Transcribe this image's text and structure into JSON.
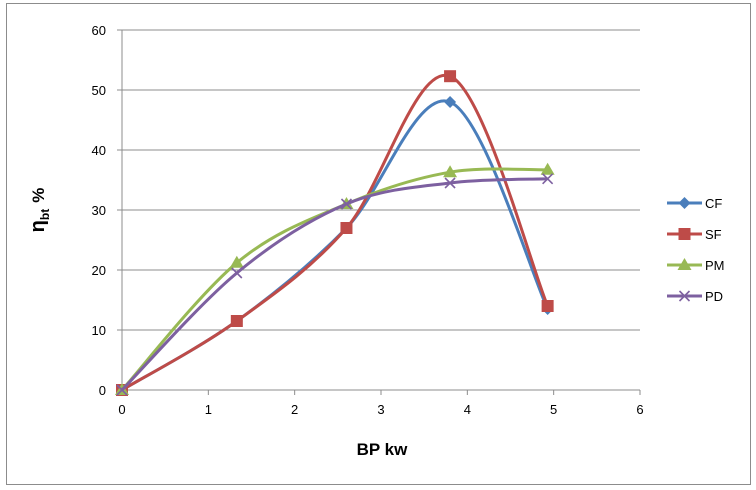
{
  "chart_data": {
    "type": "scatter",
    "title": "",
    "xlabel": "BP kw",
    "ylabel_main": "η",
    "ylabel_sub": "bt",
    "ylabel_unit": "%",
    "xlim": [
      0,
      6
    ],
    "ylim": [
      0,
      60
    ],
    "x_ticks": [
      0,
      1,
      2,
      3,
      4,
      5,
      6
    ],
    "y_ticks": [
      0,
      10,
      20,
      30,
      40,
      50,
      60
    ],
    "grid": "horizontal",
    "legend_position": "right",
    "smooth_lines": true,
    "series": [
      {
        "name": "CF",
        "color": "#4a7ebb",
        "marker": "diamond",
        "x": [
          0,
          1.33,
          2.6,
          3.8,
          4.93
        ],
        "y": [
          0,
          11.5,
          27,
          48,
          13.5
        ]
      },
      {
        "name": "SF",
        "color": "#be4b48",
        "marker": "square",
        "x": [
          0,
          1.33,
          2.6,
          3.8,
          4.93
        ],
        "y": [
          0,
          11.5,
          27,
          52.3,
          14
        ]
      },
      {
        "name": "PM",
        "color": "#98b954",
        "marker": "triangle",
        "x": [
          0,
          1.33,
          2.6,
          3.8,
          4.93
        ],
        "y": [
          0,
          21.2,
          31,
          36.3,
          36.7
        ]
      },
      {
        "name": "PD",
        "color": "#7d60a0",
        "marker": "x",
        "x": [
          0,
          1.33,
          2.6,
          3.8,
          4.93
        ],
        "y": [
          0,
          19.5,
          31,
          34.5,
          35.2
        ]
      }
    ]
  }
}
